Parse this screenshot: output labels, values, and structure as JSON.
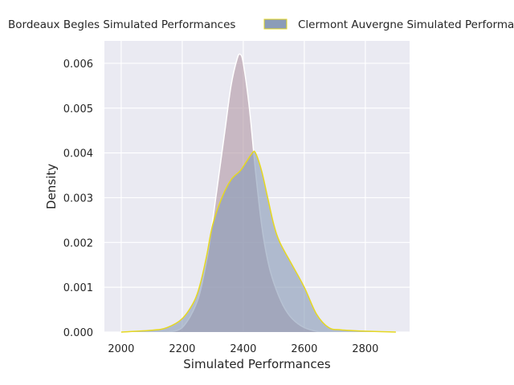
{
  "chart_data": {
    "type": "area",
    "xlabel": "Simulated Performances",
    "ylabel": "Density",
    "xlim": [
      1945,
      2945
    ],
    "ylim": [
      0,
      0.0065
    ],
    "xticks": [
      2000,
      2200,
      2400,
      2600,
      2800
    ],
    "yticks": [
      0.0,
      0.001,
      0.002,
      0.003,
      0.004,
      0.005,
      0.006
    ],
    "ytick_labels": [
      "0.000",
      "0.001",
      "0.002",
      "0.003",
      "0.004",
      "0.005",
      "0.006"
    ],
    "grid": true,
    "legend_position": "top (outside plot)",
    "series": [
      {
        "name": "Bordeaux Begles Simulated Performances",
        "fill": "#b39aa7",
        "edge": "#ffffff",
        "x": [
          2150,
          2200,
          2250,
          2280,
          2300,
          2320,
          2340,
          2360,
          2380,
          2390,
          2400,
          2420,
          2440,
          2460,
          2480,
          2500,
          2530,
          2560,
          2600,
          2650
        ],
        "y": [
          0.0,
          0.0001,
          0.0007,
          0.0016,
          0.0025,
          0.0035,
          0.0045,
          0.0055,
          0.0061,
          0.0062,
          0.006,
          0.005,
          0.0036,
          0.0024,
          0.0016,
          0.0011,
          0.0006,
          0.0003,
          0.0001,
          0.0
        ]
      },
      {
        "name": "Clermont Auvergne Simulated Performances",
        "fill": "#8b9cb8",
        "edge": "#e6d820",
        "x": [
          2000,
          2100,
          2150,
          2200,
          2240,
          2260,
          2280,
          2300,
          2330,
          2360,
          2390,
          2410,
          2430,
          2440,
          2460,
          2480,
          2500,
          2520,
          2560,
          2600,
          2640,
          2680,
          2720,
          2800,
          2900
        ],
        "y": [
          0.0,
          4e-05,
          0.0001,
          0.0003,
          0.0007,
          0.0011,
          0.0017,
          0.0024,
          0.003,
          0.0034,
          0.0036,
          0.0038,
          0.004,
          0.004,
          0.0036,
          0.003,
          0.0024,
          0.002,
          0.0015,
          0.001,
          0.0004,
          0.0001,
          5e-05,
          2e-05,
          0.0
        ]
      }
    ]
  }
}
